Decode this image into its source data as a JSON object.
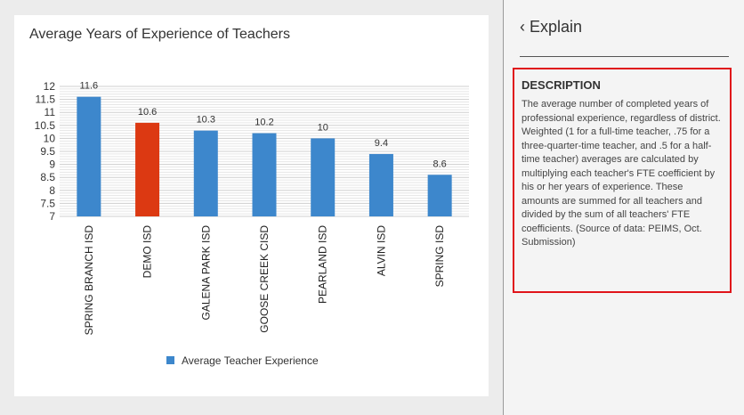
{
  "chart": {
    "title": "Average Years of Experience of Teachers"
  },
  "chart_data": {
    "type": "bar",
    "categories": [
      "SPRING BRANCH ISD",
      "DEMO ISD",
      "GALENA PARK ISD",
      "GOOSE CREEK CISD",
      "PEARLAND ISD",
      "ALVIN ISD",
      "SPRING ISD"
    ],
    "values": [
      11.6,
      10.6,
      10.3,
      10.2,
      10,
      9.4,
      8.6
    ],
    "value_labels": [
      "11.6",
      "10.6",
      "10.3",
      "10.2",
      "10",
      "9.4",
      "8.6"
    ],
    "highlight_index": 1,
    "colors": {
      "default": "#3d87cc",
      "highlight": "#dc3912"
    },
    "title": "Average Years of Experience of Teachers",
    "xlabel": "",
    "ylabel": "",
    "ylim": [
      7,
      12
    ],
    "y_ticks": [
      "12",
      "11.5",
      "11",
      "10.5",
      "10",
      "9.5",
      "9",
      "8.5",
      "8",
      "7.5",
      "7"
    ],
    "grid": true,
    "legend": {
      "label": "Average Teacher Experience",
      "placement": "bottom"
    }
  },
  "explain": {
    "back_label": "‹ Explain",
    "description_title": "DESCRIPTION",
    "description_text": "The average number of completed years of professional experience, regardless of district. Weighted (1 for a full-time teacher, .75 for a three-quarter-time teacher, and .5 for a half-time teacher) averages are calculated by multiplying each teacher's FTE coefficient by his or her years of experience. These amounts are summed for all teachers and divided by the sum of all teachers' FTE coefficients. (Source of data: PEIMS, Oct. Submission)",
    "highlight_color": "#e0141a"
  }
}
